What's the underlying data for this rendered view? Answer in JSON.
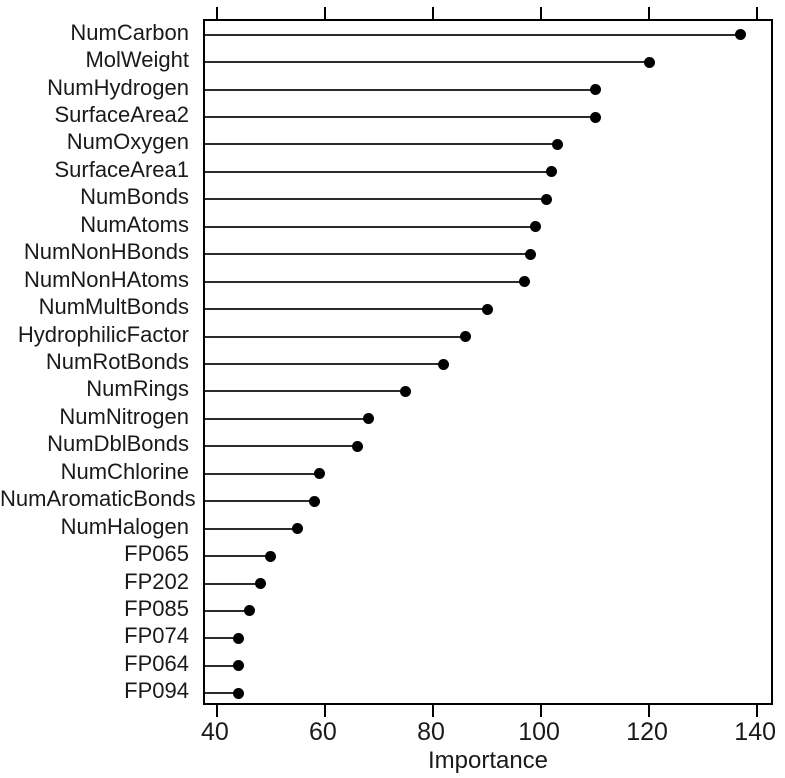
{
  "chart_data": {
    "type": "scatter",
    "subtype": "dotplot-lollipop",
    "title": "",
    "xlabel": "Importance",
    "ylabel": "",
    "categories": [
      "NumCarbon",
      "MolWeight",
      "NumHydrogen",
      "SurfaceArea2",
      "NumOxygen",
      "SurfaceArea1",
      "NumBonds",
      "NumAtoms",
      "NumNonHBonds",
      "NumNonHAtoms",
      "NumMultBonds",
      "HydrophilicFactor",
      "NumRotBonds",
      "NumRings",
      "NumNitrogen",
      "NumDblBonds",
      "NumChlorine",
      "NumAromaticBonds",
      "NumHalogen",
      "FP065",
      "FP202",
      "FP085",
      "FP074",
      "FP064",
      "FP094"
    ],
    "values": [
      137,
      120,
      110,
      110,
      103,
      102,
      101,
      99,
      98,
      97,
      90,
      86,
      82,
      75,
      68,
      66,
      59,
      58,
      55,
      50,
      48,
      46,
      44,
      44,
      44
    ],
    "x_ticks": [
      40,
      60,
      80,
      100,
      120,
      140
    ],
    "xlim": [
      37.8,
      143.3
    ],
    "grid": false,
    "legend": null,
    "dot_color": "#000000",
    "line_color": "#2b2b2b",
    "axis_color": "#000000",
    "background_color": "#ffffff"
  }
}
